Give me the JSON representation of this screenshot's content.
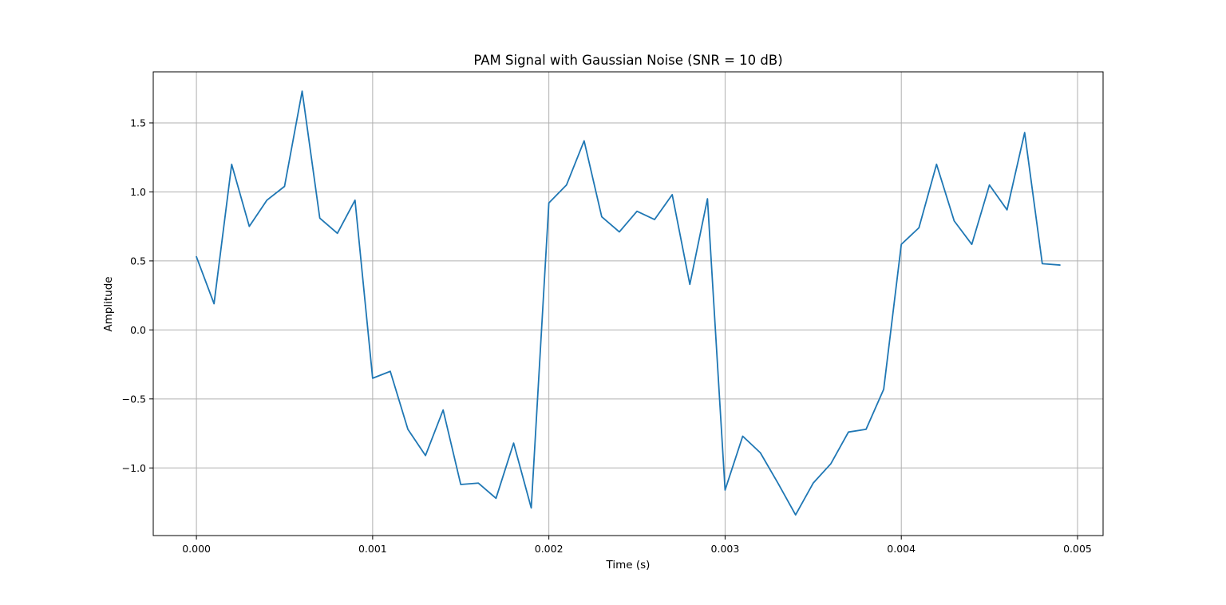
{
  "chart_data": {
    "type": "line",
    "title": "PAM Signal with Gaussian Noise (SNR = 10 dB)",
    "xlabel": "Time (s)",
    "ylabel": "Amplitude",
    "xlim": [
      -0.000245,
      0.005145
    ],
    "ylim": [
      -1.49,
      1.87
    ],
    "grid": true,
    "line_color": "#1f77b4",
    "grid_color": "#b0b0b0",
    "xticks": [
      0.0,
      0.001,
      0.002,
      0.003,
      0.004,
      0.005
    ],
    "xtick_labels": [
      "0.000",
      "0.001",
      "0.002",
      "0.003",
      "0.004",
      "0.005"
    ],
    "yticks": [
      -1.0,
      -0.5,
      0.0,
      0.5,
      1.0,
      1.5
    ],
    "ytick_labels": [
      "−1.0",
      "−0.5",
      "0.0",
      "0.5",
      "1.0",
      "1.5"
    ],
    "series": [
      {
        "x": [
          0.0,
          0.0001,
          0.0002,
          0.0003,
          0.0004,
          0.0005,
          0.0006,
          0.0007,
          0.0008,
          0.0009,
          0.001,
          0.0011,
          0.0012,
          0.0013,
          0.0014,
          0.0015,
          0.0016,
          0.0017,
          0.0018,
          0.0019,
          0.002,
          0.0021,
          0.0022,
          0.0023,
          0.0024,
          0.0025,
          0.0026,
          0.0027,
          0.0028,
          0.0029,
          0.003,
          0.0031,
          0.0032,
          0.0033,
          0.0034,
          0.0035,
          0.0036,
          0.0037,
          0.0038,
          0.0039,
          0.004,
          0.0041,
          0.0042,
          0.0043,
          0.0044,
          0.0045,
          0.0046,
          0.0047,
          0.0048,
          0.0049
        ],
        "values": [
          0.53,
          0.19,
          1.2,
          0.75,
          0.94,
          1.04,
          1.73,
          0.81,
          0.7,
          0.94,
          -0.35,
          -0.3,
          -0.72,
          -0.91,
          -0.58,
          -1.12,
          -1.11,
          -1.22,
          -0.82,
          -1.29,
          0.92,
          1.05,
          1.37,
          0.82,
          0.71,
          0.86,
          0.8,
          0.98,
          0.33,
          0.95,
          -1.16,
          -0.77,
          -0.89,
          -1.11,
          -1.34,
          -1.11,
          -0.97,
          -0.74,
          -0.72,
          -0.43,
          0.62,
          0.74,
          1.2,
          0.79,
          0.62,
          1.05,
          0.87,
          1.43,
          0.48,
          0.47
        ]
      }
    ]
  }
}
